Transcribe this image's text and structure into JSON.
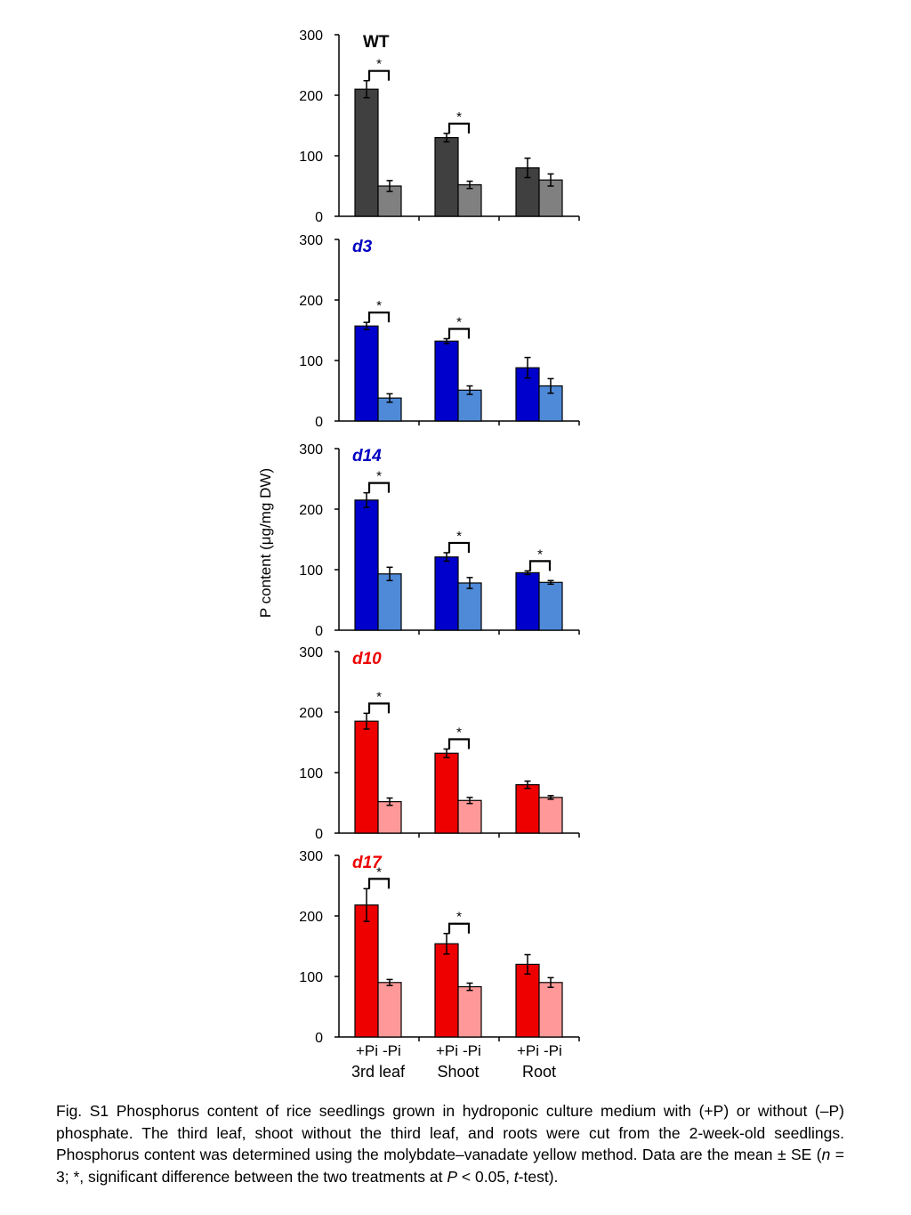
{
  "chart_data": {
    "type": "bar",
    "ylabel": "P content (μg/mg DW)",
    "ylim": [
      0,
      300
    ],
    "yticks": [
      0,
      100,
      200,
      300
    ],
    "groups": [
      "3rd leaf",
      "Shoot",
      "Root"
    ],
    "treatments": [
      "+Pi",
      "-Pi"
    ],
    "significance_mark": "*",
    "panels": [
      {
        "title": "WT",
        "title_italic": false,
        "title_color": "#000000",
        "colors": [
          "#404040",
          "#808080"
        ],
        "plus_pi": [
          210,
          130,
          80
        ],
        "plus_pi_err": [
          14,
          7,
          16
        ],
        "minus_pi": [
          50,
          52,
          60
        ],
        "minus_pi_err": [
          9,
          6,
          10
        ],
        "significant": [
          true,
          true,
          false
        ]
      },
      {
        "title": "d3",
        "title_italic": true,
        "title_color": "#0000C0",
        "colors": [
          "#0000CC",
          "#4F8AD8"
        ],
        "plus_pi": [
          157,
          132,
          88
        ],
        "plus_pi_err": [
          6,
          4,
          17
        ],
        "minus_pi": [
          38,
          51,
          58
        ],
        "minus_pi_err": [
          7,
          7,
          12
        ],
        "significant": [
          true,
          true,
          false
        ]
      },
      {
        "title": "d14",
        "title_italic": true,
        "title_color": "#0000C0",
        "colors": [
          "#0000CC",
          "#4F8AD8"
        ],
        "plus_pi": [
          215,
          121,
          95
        ],
        "plus_pi_err": [
          12,
          7,
          3
        ],
        "minus_pi": [
          93,
          78,
          79
        ],
        "minus_pi_err": [
          11,
          9,
          3
        ],
        "significant": [
          true,
          true,
          true
        ]
      },
      {
        "title": "d10",
        "title_italic": true,
        "title_color": "#EE0000",
        "colors": [
          "#EE0000",
          "#FF9999"
        ],
        "plus_pi": [
          185,
          132,
          80
        ],
        "plus_pi_err": [
          13,
          7,
          6
        ],
        "minus_pi": [
          52,
          54,
          59
        ],
        "minus_pi_err": [
          6,
          5,
          3
        ],
        "significant": [
          true,
          true,
          false
        ]
      },
      {
        "title": "d17",
        "title_italic": true,
        "title_color": "#EE0000",
        "colors": [
          "#EE0000",
          "#FF9999"
        ],
        "plus_pi": [
          218,
          154,
          120
        ],
        "plus_pi_err": [
          27,
          17,
          16
        ],
        "minus_pi": [
          90,
          83,
          90
        ],
        "minus_pi_err": [
          5,
          6,
          8
        ],
        "significant": [
          true,
          true,
          false
        ]
      }
    ]
  },
  "caption": {
    "p1": "Fig. S1 Phosphorus content of rice seedlings grown in hydroponic culture medium with (+P) or without (–P) phosphate. The third leaf, shoot without the third leaf, and roots were cut from the 2-week-old seedlings. Phosphorus content was determined using the molybdate–vanadate yellow method. Data are the mean ± SE (",
    "n": "n",
    "p2": " = 3; *, significant difference between the two treatments at ",
    "P": "P",
    "p3": " < 0.05, ",
    "t": "t",
    "p4": "-test)."
  }
}
